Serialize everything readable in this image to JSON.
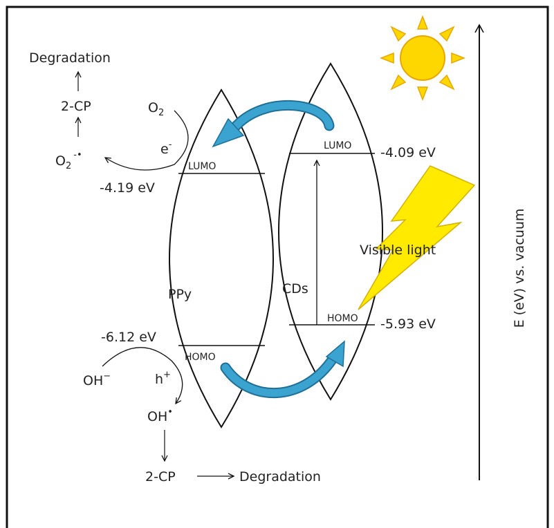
{
  "labels": {
    "degradation_top": "Degradation",
    "two_cp_top": "2-CP",
    "o2": "O",
    "o2_sub": "2",
    "o2_radical": "O",
    "o2_radical_sub": "2",
    "o2_radical_sup": "-•",
    "electron": "e",
    "electron_sup": "-",
    "ppy_lumo": "LUMO",
    "ppy_lumo_energy": "-4.19 eV",
    "ppy": "PPy",
    "ppy_homo": "HOMO",
    "ppy_homo_energy": "-6.12 eV",
    "hole": "h",
    "hole_sup": "+",
    "oh_minus": "OH",
    "oh_minus_sup": "−",
    "oh_radical": "OH",
    "oh_radical_sup": "•",
    "two_cp_bottom": "2-CP",
    "degradation_bottom": "Degradation",
    "cds_lumo": "LUMO",
    "cds_lumo_energy": "-4.09 eV",
    "cds": "CDs",
    "cds_homo": "HOMO",
    "cds_homo_energy": "-5.93 eV",
    "visible_light": "Visible light",
    "axis_label": "E (eV) vs. vacuum"
  },
  "colors": {
    "transfer_arrow": "#3ba3cf",
    "sun": "#ffd700",
    "sun_stroke": "#e6a800",
    "lightning": "#ffea00",
    "lightning_stroke": "#d4b000",
    "line": "#111111"
  },
  "icons": [
    "sun-icon",
    "lightning-icon",
    "electron-transfer-arrow-icon",
    "hole-transfer-arrow-icon"
  ]
}
